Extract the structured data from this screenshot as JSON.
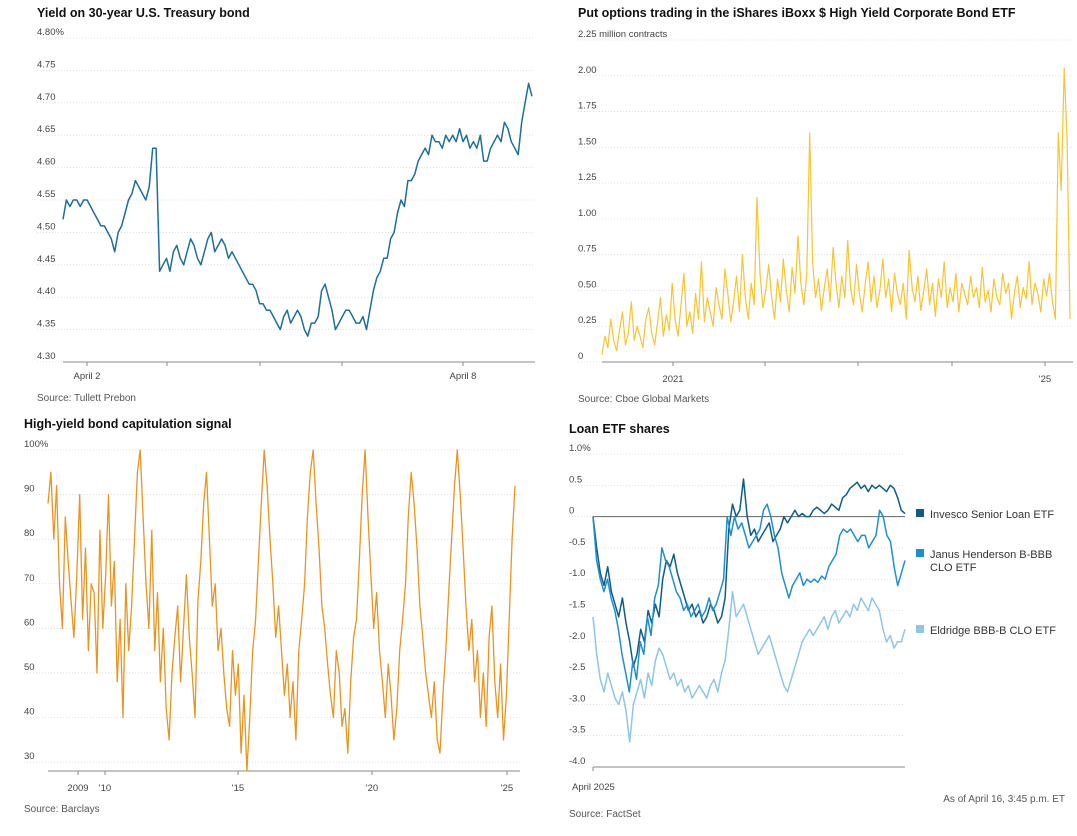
{
  "chart_data": [
    {
      "id": "treasury",
      "type": "line",
      "title": "Yield on 30-year U.S. Treasury bond",
      "source": "Source: Tullett Prebon",
      "yticks": [
        "4.80%",
        "4.75",
        "4.70",
        "4.65",
        "4.60",
        "4.55",
        "4.50",
        "4.45",
        "4.40",
        "4.35",
        "4.30"
      ],
      "ylim": [
        4.3,
        4.8
      ],
      "xticks": [
        "April 2",
        "April 8"
      ],
      "color": "#1b6f9a",
      "series": [
        {
          "values": [
            4.52,
            4.55,
            4.54,
            4.55,
            4.55,
            4.54,
            4.55,
            4.55,
            4.54,
            4.53,
            4.52,
            4.51,
            4.51,
            4.5,
            4.49,
            4.47,
            4.5,
            4.51,
            4.53,
            4.55,
            4.56,
            4.58,
            4.57,
            4.56,
            4.55,
            4.57,
            4.63,
            4.63,
            4.44,
            4.45,
            4.46,
            4.44,
            4.47,
            4.48,
            4.46,
            4.45,
            4.47,
            4.49,
            4.48,
            4.46,
            4.45,
            4.47,
            4.49,
            4.5,
            4.47,
            4.48,
            4.49,
            4.48,
            4.46,
            4.47,
            4.46,
            4.45,
            4.44,
            4.43,
            4.42,
            4.42,
            4.41,
            4.39,
            4.39,
            4.38,
            4.38,
            4.37,
            4.36,
            4.35,
            4.37,
            4.38,
            4.36,
            4.37,
            4.38,
            4.37,
            4.35,
            4.34,
            4.36,
            4.36,
            4.37,
            4.41,
            4.42,
            4.4,
            4.38,
            4.35,
            4.36,
            4.37,
            4.38,
            4.38,
            4.37,
            4.36,
            4.36,
            4.37,
            4.35,
            4.38,
            4.41,
            4.43,
            4.44,
            4.46,
            4.46,
            4.49,
            4.5,
            4.53,
            4.55,
            4.54,
            4.58,
            4.58,
            4.59,
            4.61,
            4.62,
            4.63,
            4.62,
            4.65,
            4.64,
            4.64,
            4.63,
            4.65,
            4.64,
            4.65,
            4.64,
            4.66,
            4.64,
            4.65,
            4.63,
            4.64,
            4.63,
            4.65,
            4.61,
            4.61,
            4.63,
            4.64,
            4.65,
            4.64,
            4.67,
            4.66,
            4.64,
            4.63,
            4.62,
            4.67,
            4.7,
            4.73,
            4.71
          ]
        }
      ],
      "xtick_positions": [
        8,
        113
      ]
    },
    {
      "id": "puts",
      "type": "line",
      "title": "Put options trading in the iShares iBoxx $ High Yield Corporate Bond ETF",
      "source": "Source: Cboe Global Markets",
      "yticks": [
        "2.25 million contracts",
        "2.00",
        "1.75",
        "1.50",
        "1.25",
        "1.00",
        "0.75",
        "0.50",
        "0.25",
        "0"
      ],
      "ylim": [
        0,
        2.25
      ],
      "xticks": [
        "2021",
        "'25"
      ],
      "color": "#f7c52f",
      "series": [
        {
          "values": [
            0.05,
            0.18,
            0.1,
            0.3,
            0.15,
            0.08,
            0.22,
            0.35,
            0.12,
            0.2,
            0.42,
            0.15,
            0.25,
            0.18,
            0.1,
            0.3,
            0.38,
            0.2,
            0.12,
            0.28,
            0.45,
            0.18,
            0.33,
            0.22,
            0.55,
            0.3,
            0.18,
            0.4,
            0.62,
            0.25,
            0.35,
            0.2,
            0.48,
            0.3,
            0.7,
            0.28,
            0.45,
            0.35,
            0.25,
            0.52,
            0.4,
            0.3,
            0.65,
            0.48,
            0.28,
            0.42,
            0.6,
            0.35,
            0.75,
            0.45,
            0.3,
            0.55,
            0.4,
            1.15,
            0.62,
            0.38,
            0.5,
            0.68,
            0.45,
            0.3,
            0.58,
            0.42,
            0.72,
            0.5,
            0.35,
            0.66,
            0.48,
            0.88,
            0.55,
            0.4,
            0.62,
            1.6,
            0.7,
            0.45,
            0.58,
            0.36,
            0.52,
            0.65,
            0.42,
            0.8,
            0.55,
            0.38,
            0.6,
            0.45,
            0.85,
            0.52,
            0.4,
            0.68,
            0.48,
            0.35,
            0.55,
            0.7,
            0.42,
            0.6,
            0.38,
            0.5,
            0.72,
            0.45,
            0.58,
            0.35,
            0.62,
            0.48,
            0.4,
            0.55,
            0.3,
            0.78,
            0.52,
            0.42,
            0.6,
            0.36,
            0.5,
            0.65,
            0.4,
            0.55,
            0.32,
            0.58,
            0.45,
            0.7,
            0.38,
            0.52,
            0.42,
            0.62,
            0.35,
            0.55,
            0.48,
            0.4,
            0.6,
            0.45,
            0.52,
            0.38,
            0.66,
            0.42,
            0.5,
            0.35,
            0.58,
            0.45,
            0.4,
            0.62,
            0.48,
            0.55,
            0.3,
            0.48,
            0.6,
            0.38,
            0.52,
            0.44,
            0.7,
            0.4,
            0.55,
            0.48,
            0.35,
            0.58,
            0.46,
            0.62,
            0.42,
            0.3,
            1.6,
            1.2,
            2.05,
            1.55,
            0.3
          ]
        }
      ],
      "xtick_positions": [
        0.17,
        0.93
      ]
    },
    {
      "id": "capitulation",
      "type": "line",
      "title": "High-yield bond capitulation signal",
      "source": "Source: Barclays",
      "yticks": [
        "100%",
        "90",
        "80",
        "70",
        "60",
        "50",
        "40",
        "30"
      ],
      "ylim": [
        28,
        100
      ],
      "xticks": [
        "2009",
        "'10",
        "'15",
        "'20",
        "'25"
      ],
      "color": "#e8951f",
      "series": [
        {
          "values": [
            88,
            95,
            80,
            92,
            70,
            60,
            85,
            75,
            66,
            58,
            72,
            90,
            62,
            78,
            55,
            70,
            68,
            50,
            82,
            60,
            72,
            90,
            65,
            75,
            48,
            62,
            40,
            70,
            55,
            65,
            80,
            95,
            100,
            85,
            70,
            60,
            82,
            55,
            68,
            48,
            60,
            42,
            35,
            50,
            58,
            65,
            48,
            60,
            72,
            58,
            50,
            40,
            66,
            75,
            88,
            95,
            80,
            65,
            70,
            55,
            60,
            50,
            42,
            38,
            55,
            45,
            52,
            32,
            45,
            28,
            40,
            55,
            62,
            75,
            88,
            100,
            92,
            80,
            70,
            58,
            65,
            55,
            45,
            52,
            40,
            48,
            35,
            55,
            62,
            70,
            85,
            95,
            100,
            88,
            78,
            65,
            60,
            52,
            45,
            40,
            55,
            50,
            38,
            42,
            32,
            48,
            58,
            62,
            75,
            90,
            100,
            85,
            72,
            60,
            68,
            55,
            48,
            40,
            52,
            45,
            35,
            42,
            55,
            62,
            70,
            85,
            95,
            88,
            78,
            65,
            58,
            50,
            45,
            40,
            48,
            35,
            32,
            45,
            55,
            68,
            80,
            92,
            100,
            90,
            78,
            65,
            55,
            62,
            48,
            55,
            40,
            50,
            38,
            58,
            65,
            48,
            40,
            52,
            35,
            45,
            62,
            80,
            92
          ]
        }
      ],
      "xtick_positions": [
        0.085,
        0.125,
        0.39,
        0.635,
        0.875
      ]
    },
    {
      "id": "loan_etf",
      "type": "line",
      "title": "Loan ETF shares",
      "source": "Source: FactSet",
      "note": "As of April 16, 3:45 p.m. ET",
      "yticks": [
        "1.0%",
        "0.5",
        "0",
        "-0.5",
        "-1.0",
        "-1.5",
        "-2.0",
        "-2.5",
        "-3.0",
        "-3.5",
        "-4.0"
      ],
      "ylim": [
        -4.0,
        1.0
      ],
      "xticks": [
        "April 2025"
      ],
      "series": [
        {
          "name": "Invesco Senior Loan ETF",
          "color": "#0b5e8a",
          "values": [
            0.0,
            -0.5,
            -0.9,
            -1.1,
            -0.8,
            -1.2,
            -1.4,
            -1.6,
            -1.3,
            -1.7,
            -2.0,
            -2.4,
            -2.2,
            -1.8,
            -2.0,
            -1.5,
            -1.7,
            -1.4,
            -1.6,
            -1.0,
            -0.7,
            -0.8,
            -0.6,
            -0.9,
            -1.1,
            -1.3,
            -1.5,
            -1.4,
            -1.6,
            -1.5,
            -1.7,
            -1.6,
            -1.4,
            -1.5,
            -1.7,
            -1.6,
            -1.3,
            -0.2,
            0.2,
            0.0,
            0.1,
            0.6,
            0.0,
            -0.3,
            -0.2,
            -0.4,
            -0.3,
            -0.2,
            -0.1,
            -0.4,
            -0.3,
            -0.2,
            0.0,
            -0.1,
            0.0,
            0.1,
            0.0,
            0.05,
            0.0,
            0.0,
            0.1,
            0.15,
            0.1,
            0.05,
            0.1,
            0.2,
            0.15,
            0.1,
            0.3,
            0.35,
            0.45,
            0.5,
            0.55,
            0.45,
            0.5,
            0.4,
            0.5,
            0.45,
            0.5,
            0.45,
            0.4,
            0.5,
            0.45,
            0.3,
            0.1,
            0.05
          ]
        },
        {
          "name": "Janus Henderson B-BBB CLO ETF",
          "color": "#1f8fd1",
          "values": [
            0.0,
            -0.7,
            -1.0,
            -1.2,
            -1.0,
            -1.3,
            -1.5,
            -1.8,
            -2.2,
            -2.5,
            -2.8,
            -2.3,
            -2.6,
            -2.0,
            -2.2,
            -1.6,
            -1.9,
            -1.3,
            -1.1,
            -0.5,
            -0.7,
            -0.8,
            -1.0,
            -1.2,
            -1.3,
            -1.5,
            -1.4,
            -1.6,
            -1.5,
            -1.4,
            -1.6,
            -1.5,
            -1.3,
            -1.5,
            -1.4,
            -1.2,
            -1.0,
            0.0,
            -0.3,
            0.0,
            -0.2,
            -0.1,
            -0.3,
            -0.5,
            -0.4,
            -0.3,
            -0.2,
            0.1,
            0.2,
            0.0,
            -0.3,
            -0.5,
            -0.9,
            -1.1,
            -1.3,
            -1.1,
            -1.0,
            -0.9,
            -1.1,
            -1.0,
            -1.05,
            -1.0,
            -1.05,
            -0.95,
            -1.0,
            -0.8,
            -0.7,
            -0.6,
            -0.3,
            -0.2,
            -0.25,
            -0.2,
            -0.3,
            -0.4,
            -0.3,
            -0.3,
            -0.5,
            -0.4,
            -0.3,
            0.1,
            0.0,
            -0.3,
            -0.4,
            -0.8,
            -1.1,
            -0.9,
            -0.7
          ]
        },
        {
          "name": "Eldridge BBB-B CLO ETF",
          "color": "#8ec6e8",
          "values": [
            -1.6,
            -2.2,
            -2.6,
            -2.8,
            -2.5,
            -2.7,
            -2.9,
            -3.0,
            -2.8,
            -3.1,
            -3.6,
            -3.0,
            -2.8,
            -2.6,
            -2.9,
            -2.5,
            -2.7,
            -2.3,
            -2.1,
            -2.2,
            -2.4,
            -2.6,
            -2.5,
            -2.7,
            -2.6,
            -2.8,
            -2.7,
            -2.9,
            -2.8,
            -2.7,
            -2.8,
            -2.9,
            -2.7,
            -2.6,
            -2.8,
            -2.5,
            -2.3,
            -1.8,
            -1.2,
            -1.6,
            -1.5,
            -1.4,
            -1.6,
            -1.8,
            -2.0,
            -2.2,
            -2.1,
            -2.0,
            -1.9,
            -2.1,
            -2.3,
            -2.5,
            -2.7,
            -2.8,
            -2.6,
            -2.4,
            -2.2,
            -2.0,
            -1.9,
            -1.8,
            -1.9,
            -1.8,
            -1.7,
            -1.6,
            -1.8,
            -1.6,
            -1.5,
            -1.7,
            -1.6,
            -1.5,
            -1.6,
            -1.4,
            -1.5,
            -1.3,
            -1.4,
            -1.5,
            -1.3,
            -1.4,
            -1.5,
            -1.8,
            -2.0,
            -1.9,
            -2.1,
            -2.0,
            -2.0,
            -1.8
          ]
        }
      ],
      "xtick_positions": [
        0.0
      ]
    }
  ]
}
